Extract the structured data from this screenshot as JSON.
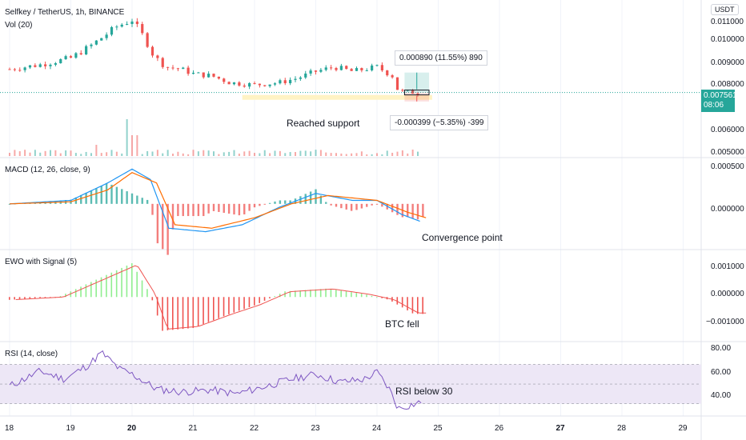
{
  "header": {
    "symbol_title": "Selfkey / TetherUS, 1h, BINANCE",
    "vol_label": "Vol (20)",
    "currency_button": "USDT"
  },
  "indicators": {
    "macd_label": "MACD (12, 26, close, 9)",
    "ewo_label": "EWO with Signal (5)",
    "rsi_label": "RSI (14, close)"
  },
  "price_axis": {
    "ticks": [
      "0.011000",
      "0.010000",
      "0.009000",
      "0.008000",
      "0.006000",
      "0.005000"
    ],
    "current_price": "0.007561",
    "countdown": "08:06"
  },
  "macd_axis": {
    "ticks": [
      "0.000500",
      "0.000000"
    ]
  },
  "ewo_axis": {
    "ticks": [
      "0.001000",
      "0.000000",
      "−0.001000"
    ]
  },
  "rsi_axis": {
    "ticks": [
      "80.00",
      "60.00",
      "40.00"
    ]
  },
  "time_axis": {
    "ticks": [
      "18",
      "19",
      "20",
      "21",
      "22",
      "23",
      "24",
      "25",
      "26",
      "27",
      "28",
      "29"
    ],
    "bold": [
      "20",
      "27"
    ]
  },
  "annotations": {
    "reached_support": "Reached support",
    "convergence_point": "Convergence point",
    "btc_fell": "BTC fell",
    "rsi_below": "RSI below 30",
    "profit_box": "0.000890 (11.55%) 890",
    "loss_box": "-0.000399 (−5.35%) -399"
  },
  "colors": {
    "up": "#26a69a",
    "down": "#ef5350",
    "macd_line": "#2196f3",
    "signal_line": "#ff6d00",
    "ewo_pos": "#90ee90",
    "ewo_neg": "#ef5350",
    "rsi_line": "#7e57c2",
    "rsi_band": "#ede7f6",
    "support_zone": "#fff3c4"
  },
  "chart_data": [
    {
      "type": "candlestick",
      "title": "Selfkey / TetherUS, 1h, BINANCE",
      "y_scale": "price (USDT)",
      "ylim": [
        0.0048,
        0.0114
      ],
      "x_categories": [
        "18",
        "19",
        "20",
        "21",
        "22",
        "23",
        "24",
        "25"
      ],
      "close_path": [
        [
          18.0,
          0.0086
        ],
        [
          18.5,
          0.0088
        ],
        [
          19.0,
          0.0091
        ],
        [
          19.3,
          0.0096
        ],
        [
          19.5,
          0.01
        ],
        [
          19.75,
          0.0105
        ],
        [
          20.0,
          0.0108
        ],
        [
          20.2,
          0.01
        ],
        [
          20.35,
          0.0092
        ],
        [
          20.55,
          0.0087
        ],
        [
          20.8,
          0.0086
        ],
        [
          21.0,
          0.0084
        ],
        [
          21.3,
          0.0083
        ],
        [
          21.6,
          0.008
        ],
        [
          22.0,
          0.0079
        ],
        [
          22.4,
          0.008
        ],
        [
          22.7,
          0.0082
        ],
        [
          23.0,
          0.0085
        ],
        [
          23.3,
          0.0087
        ],
        [
          23.6,
          0.0085
        ],
        [
          24.0,
          0.0087
        ],
        [
          24.25,
          0.0083
        ],
        [
          24.35,
          0.0076
        ],
        [
          24.7,
          0.00756
        ]
      ],
      "current_price": 0.007561
    },
    {
      "type": "bar",
      "title": "Vol (20)",
      "x_categories": [
        "18",
        "19",
        "20",
        "21",
        "22",
        "23",
        "24",
        "25"
      ],
      "note": "volume histogram with spike near 20"
    },
    {
      "type": "line",
      "title": "MACD (12, 26, close, 9)",
      "series": [
        {
          "name": "MACD",
          "points": [
            [
              18.0,
              0.0
            ],
            [
              19.0,
              5e-05
            ],
            [
              19.6,
              0.0003
            ],
            [
              20.0,
              0.0005
            ],
            [
              20.3,
              0.00035
            ],
            [
              20.6,
              -0.00035
            ],
            [
              21.2,
              -0.0004
            ],
            [
              21.8,
              -0.0003
            ],
            [
              22.4,
              -5e-05
            ],
            [
              23.0,
              0.00015
            ],
            [
              23.6,
              5e-05
            ],
            [
              24.0,
              5e-05
            ],
            [
              24.4,
              -0.00015
            ],
            [
              24.7,
              -0.00025
            ]
          ]
        },
        {
          "name": "Signal",
          "points": [
            [
              18.0,
              0.0
            ],
            [
              19.0,
              3e-05
            ],
            [
              19.6,
              0.0002
            ],
            [
              20.0,
              0.00045
            ],
            [
              20.4,
              0.0003
            ],
            [
              20.7,
              -0.0003
            ],
            [
              21.3,
              -0.00035
            ],
            [
              22.0,
              -0.0002
            ],
            [
              22.6,
              0.0
            ],
            [
              23.2,
              0.00012
            ],
            [
              24.0,
              5e-05
            ],
            [
              24.5,
              -0.00012
            ],
            [
              24.8,
              -0.0002
            ]
          ]
        }
      ],
      "ylim": [
        -0.0006,
        0.00055
      ]
    },
    {
      "type": "bar",
      "title": "EWO with Signal (5)",
      "series": [
        {
          "name": "EWO",
          "points": [
            [
              18.0,
              -0.0001
            ],
            [
              18.8,
              0.0
            ],
            [
              19.5,
              0.0007
            ],
            [
              20.0,
              0.0012
            ],
            [
              20.3,
              0.0001
            ],
            [
              20.5,
              -0.0012
            ],
            [
              21.0,
              -0.0011
            ],
            [
              21.6,
              -0.0006
            ],
            [
              22.0,
              -0.0003
            ],
            [
              22.5,
              0.0002
            ],
            [
              23.2,
              0.0003
            ],
            [
              23.8,
              0.0001
            ],
            [
              24.2,
              -0.0001
            ],
            [
              24.6,
              -0.0006
            ]
          ]
        }
      ],
      "ylim": [
        -0.0013,
        0.0014
      ]
    },
    {
      "type": "line",
      "title": "RSI (14, close)",
      "series": [
        {
          "name": "RSI",
          "points": [
            [
              18.0,
              48
            ],
            [
              18.5,
              63
            ],
            [
              18.9,
              55
            ],
            [
              19.3,
              70
            ],
            [
              19.5,
              82
            ],
            [
              19.8,
              65
            ],
            [
              20.0,
              60
            ],
            [
              20.4,
              45
            ],
            [
              20.8,
              42
            ],
            [
              21.3,
              44
            ],
            [
              21.7,
              40
            ],
            [
              22.2,
              48
            ],
            [
              22.6,
              55
            ],
            [
              23.0,
              60
            ],
            [
              23.4,
              52
            ],
            [
              23.8,
              55
            ],
            [
              24.0,
              62
            ],
            [
              24.2,
              45
            ],
            [
              24.35,
              25
            ],
            [
              24.5,
              28
            ],
            [
              24.75,
              32
            ]
          ]
        }
      ],
      "ylim": [
        20,
        85
      ],
      "bands": [
        30,
        70
      ]
    }
  ]
}
